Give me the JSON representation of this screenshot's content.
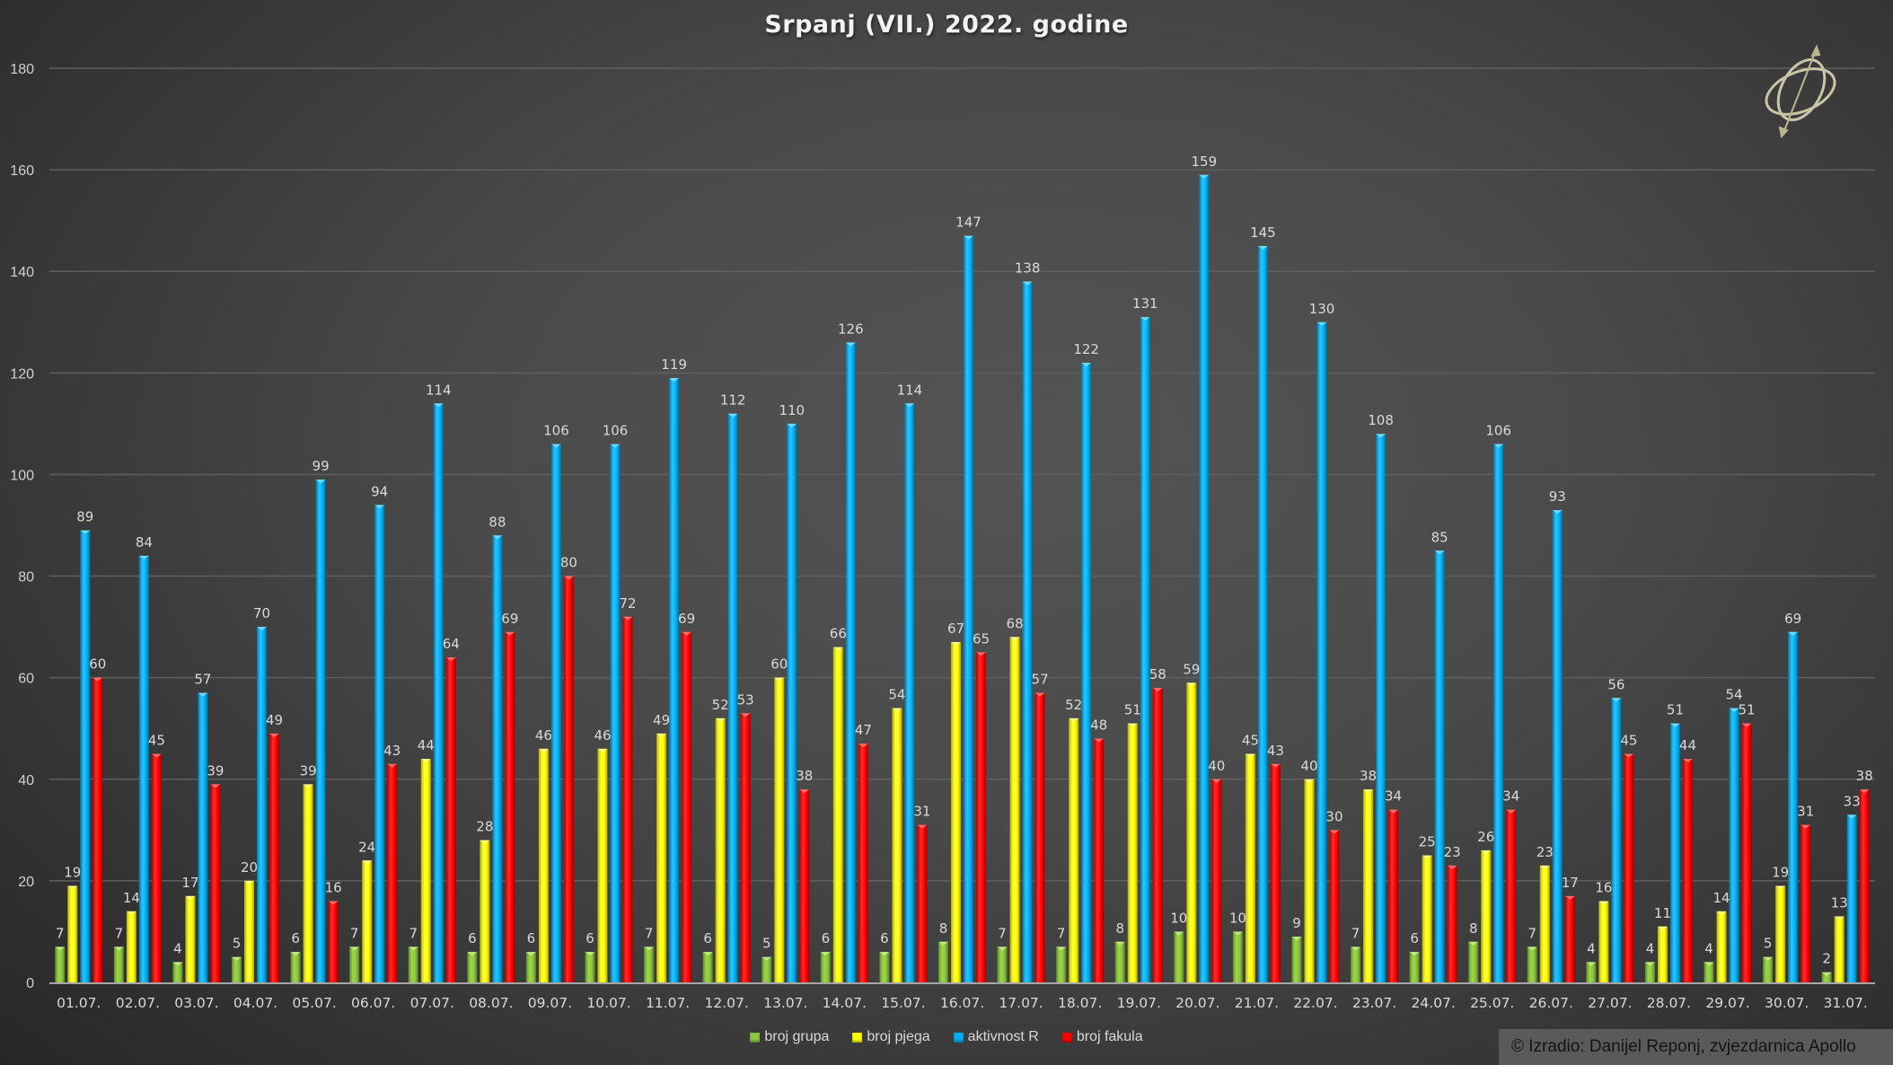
{
  "chart_data": {
    "type": "bar",
    "title": "Srpanj (VII.) 2022. godine",
    "xlabel": "",
    "ylabel": "",
    "ylim": [
      0,
      180
    ],
    "yticks": [
      0,
      20,
      40,
      60,
      80,
      100,
      120,
      140,
      160,
      180
    ],
    "grid": true,
    "legend_position": "bottom",
    "data_labels": true,
    "categories": [
      "01.07.",
      "02.07.",
      "03.07.",
      "04.07.",
      "05.07.",
      "06.07.",
      "07.07.",
      "08.07.",
      "09.07.",
      "10.07.",
      "11.07.",
      "12.07.",
      "13.07.",
      "14.07.",
      "15.07.",
      "16.07.",
      "17.07.",
      "18.07.",
      "19.07.",
      "20.07.",
      "21.07.",
      "22.07.",
      "23.07.",
      "24.07.",
      "25.07.",
      "26.07.",
      "27.07.",
      "28.07.",
      "29.07.",
      "30.07.",
      "31.07."
    ],
    "series": [
      {
        "name": "broj grupa",
        "color": "#8dc63f",
        "values": [
          7,
          7,
          4,
          5,
          6,
          7,
          7,
          6,
          6,
          6,
          7,
          6,
          5,
          6,
          6,
          8,
          7,
          7,
          8,
          10,
          10,
          9,
          7,
          6,
          8,
          7,
          4,
          4,
          4,
          5,
          2
        ]
      },
      {
        "name": "broj pjega",
        "color": "#ffff00",
        "values": [
          19,
          14,
          17,
          20,
          39,
          24,
          44,
          28,
          46,
          46,
          49,
          52,
          60,
          66,
          54,
          67,
          68,
          52,
          51,
          59,
          45,
          40,
          38,
          25,
          26,
          23,
          16,
          11,
          14,
          19,
          13
        ]
      },
      {
        "name": "aktivnost R",
        "color": "#00b0f0",
        "values": [
          89,
          84,
          57,
          70,
          99,
          94,
          114,
          88,
          106,
          106,
          119,
          112,
          110,
          126,
          114,
          147,
          138,
          122,
          131,
          159,
          145,
          130,
          108,
          85,
          106,
          93,
          56,
          51,
          54,
          69,
          33
        ]
      },
      {
        "name": "broj fakula",
        "color": "#ff0000",
        "values": [
          60,
          45,
          39,
          49,
          16,
          43,
          64,
          69,
          80,
          72,
          69,
          53,
          38,
          47,
          31,
          65,
          57,
          48,
          58,
          40,
          43,
          30,
          34,
          23,
          34,
          17,
          45,
          44,
          51,
          31,
          38
        ]
      }
    ]
  },
  "footer": {
    "copyright": "© Izradio: Danijel Reponj, zvjezdarnica Apollo"
  },
  "logo": {
    "icon": "armillary-sphere-icon"
  }
}
